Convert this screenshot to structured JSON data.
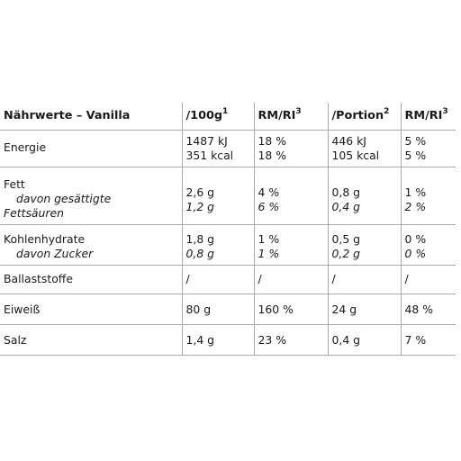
{
  "header": {
    "col1": "Nährwerte – Vanilla",
    "col2": "/100g",
    "col2_sup": "1",
    "col3": "RM/RI",
    "col3_sup": "3",
    "col4": "/Portion",
    "col4_sup": "2",
    "col5": "RM/RI",
    "col5_sup": "3"
  },
  "rows": {
    "energie": {
      "label": "Energie",
      "per100": [
        "1487 kJ",
        "351 kcal"
      ],
      "ri100": [
        "18 %",
        "18 %"
      ],
      "portion": [
        "446 kJ",
        "105 kcal"
      ],
      "riPortion": [
        "5 %",
        "5 %"
      ]
    },
    "fett": {
      "label": "Fett",
      "sub_label_1": "davon gesättigte",
      "sub_label_2": "Fettsäuren",
      "per100": [
        "2,6 g",
        "1,2 g"
      ],
      "ri100": [
        "4 %",
        "6 %"
      ],
      "portion": [
        "0,8 g",
        "0,4 g"
      ],
      "riPortion": [
        "1 %",
        "2 %"
      ]
    },
    "kohlenhydrate": {
      "label": "Kohlenhydrate",
      "sub_label": "davon Zucker",
      "per100": [
        "1,8 g",
        "0,8 g"
      ],
      "ri100": [
        "1 %",
        "1 %"
      ],
      "portion": [
        "0,5 g",
        "0,2 g"
      ],
      "riPortion": [
        "0 %",
        "0 %"
      ]
    },
    "ballaststoffe": {
      "label": "Ballaststoffe",
      "per100": "/",
      "ri100": "/",
      "portion": "/",
      "riPortion": "/"
    },
    "eiweiss": {
      "label": "Eiweiß",
      "per100": "80 g",
      "ri100": "160 %",
      "portion": "24 g",
      "riPortion": "48 %"
    },
    "salz": {
      "label": "Salz",
      "per100": "1,4 g",
      "ri100": "23 %",
      "portion": "0,4 g",
      "riPortion": "7 %"
    }
  }
}
